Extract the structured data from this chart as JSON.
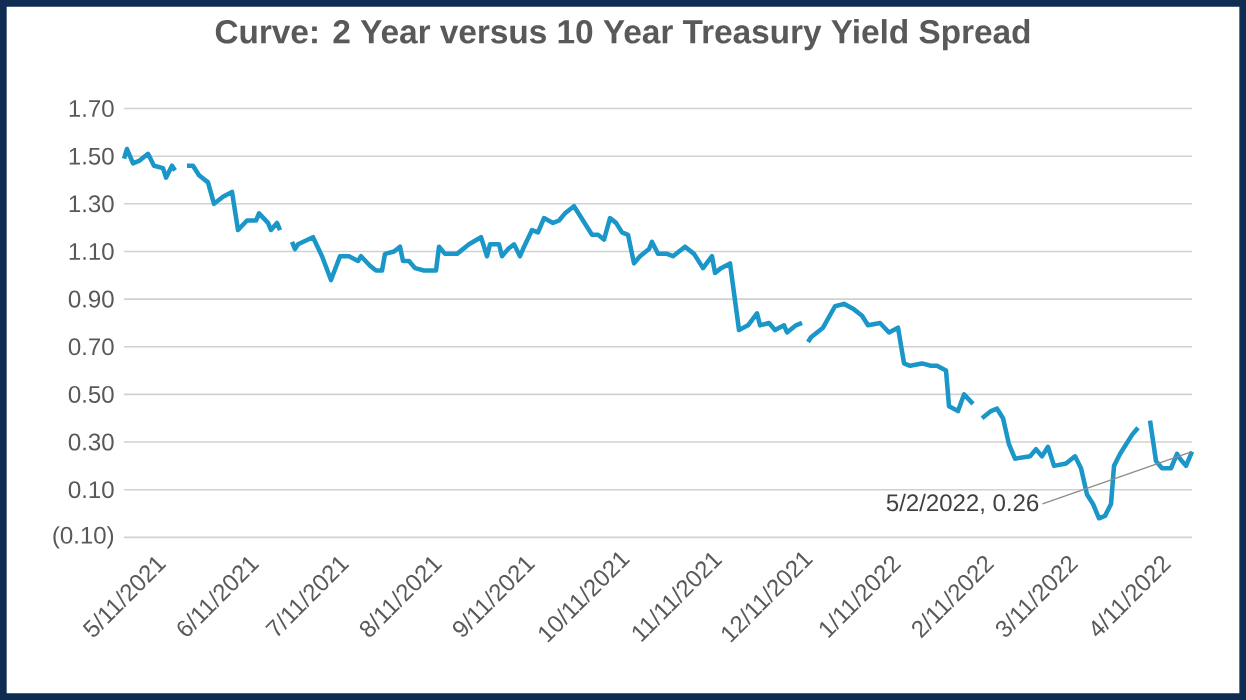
{
  "chart_data": {
    "type": "line",
    "title": "Curve: 2 Year versus 10 Year Treasury Yield Spread",
    "color": "#1a96c8",
    "marker": "none",
    "line_style": "solid",
    "grid": "y",
    "xlim": [
      "2021-05-11",
      "2022-05-02"
    ],
    "xticks": [
      {
        "value": "2021-05-11",
        "label": "5/11/2021"
      },
      {
        "value": "2021-06-11",
        "label": "6/11/2021"
      },
      {
        "value": "2021-07-11",
        "label": "7/11/2021"
      },
      {
        "value": "2021-08-11",
        "label": "8/11/2021"
      },
      {
        "value": "2021-09-11",
        "label": "9/11/2021"
      },
      {
        "value": "2021-10-11",
        "label": "10/11/2021"
      },
      {
        "value": "2021-11-11",
        "label": "11/11/2021"
      },
      {
        "value": "2021-12-11",
        "label": "12/11/2021"
      },
      {
        "value": "2022-01-11",
        "label": "1/11/2022"
      },
      {
        "value": "2022-02-11",
        "label": "2/11/2022"
      },
      {
        "value": "2022-03-11",
        "label": "3/11/2022"
      },
      {
        "value": "2022-04-11",
        "label": "4/11/2022"
      }
    ],
    "ylim": [
      -0.1,
      1.7
    ],
    "yticks": [
      {
        "value": -0.1,
        "label": "(0.10)"
      },
      {
        "value": 0.1,
        "label": "0.10"
      },
      {
        "value": 0.3,
        "label": "0.30"
      },
      {
        "value": 0.5,
        "label": "0.50"
      },
      {
        "value": 0.7,
        "label": "0.70"
      },
      {
        "value": 0.9,
        "label": "0.90"
      },
      {
        "value": 1.1,
        "label": "1.10"
      },
      {
        "value": 1.3,
        "label": "1.30"
      },
      {
        "value": 1.5,
        "label": "1.50"
      },
      {
        "value": 1.7,
        "label": "1.70"
      }
    ],
    "annotations": [
      {
        "text": "5/2/2022,  0.26",
        "x": "2022-05-02",
        "y": 0.26
      }
    ],
    "x": [
      "2021-05-11",
      "2021-05-12",
      "2021-05-14",
      "2021-05-16",
      "2021-05-19",
      "2021-05-21",
      "2021-05-24",
      "2021-05-25",
      "2021-05-27",
      "2021-05-28",
      "2021-05-31",
      "2021-06-01",
      "2021-06-03",
      "2021-06-05",
      "2021-06-08",
      "2021-06-10",
      "2021-06-13",
      "2021-06-16",
      "2021-06-18",
      "2021-06-21",
      "2021-06-24",
      "2021-06-25",
      "2021-06-28",
      "2021-06-29",
      "2021-07-01",
      "2021-07-02",
      "2021-07-04",
      "2021-07-06",
      "2021-07-07",
      "2021-07-08",
      "2021-07-13",
      "2021-07-16",
      "2021-07-19",
      "2021-07-22",
      "2021-07-25",
      "2021-07-28",
      "2021-07-29",
      "2021-08-01",
      "2021-08-03",
      "2021-08-05",
      "2021-08-06",
      "2021-08-09",
      "2021-08-11",
      "2021-08-12",
      "2021-08-14",
      "2021-08-16",
      "2021-08-19",
      "2021-08-21",
      "2021-08-23",
      "2021-08-24",
      "2021-08-26",
      "2021-08-30",
      "2021-09-01",
      "2021-09-03",
      "2021-09-07",
      "2021-09-09",
      "2021-09-10",
      "2021-09-13",
      "2021-09-14",
      "2021-09-16",
      "2021-09-18",
      "2021-09-20",
      "2021-09-21",
      "2021-09-24",
      "2021-09-26",
      "2021-09-28",
      "2021-10-01",
      "2021-10-03",
      "2021-10-05",
      "2021-10-08",
      "2021-10-10",
      "2021-10-14",
      "2021-10-16",
      "2021-10-18",
      "2021-10-20",
      "2021-10-22",
      "2021-10-24",
      "2021-10-26",
      "2021-10-28",
      "2021-10-30",
      "2021-11-02",
      "2021-11-03",
      "2021-11-05",
      "2021-11-08",
      "2021-11-10",
      "2021-11-14",
      "2021-11-17",
      "2021-11-20",
      "2021-11-23",
      "2021-11-24",
      "2021-11-26",
      "2021-11-29",
      "2021-12-02",
      "2021-12-05",
      "2021-12-08",
      "2021-12-09",
      "2021-12-12",
      "2021-12-14",
      "2021-12-17",
      "2021-12-18",
      "2021-12-21",
      "2021-12-23",
      "2021-12-24",
      "2021-12-25",
      "2021-12-26",
      "2021-12-28",
      "2021-12-30",
      "2022-01-03",
      "2022-01-06",
      "2022-01-09",
      "2022-01-12",
      "2022-01-14",
      "2022-01-18",
      "2022-01-21",
      "2022-01-24",
      "2022-01-26",
      "2022-01-28",
      "2022-02-01",
      "2022-02-04",
      "2022-02-06",
      "2022-02-09",
      "2022-02-10",
      "2022-02-13",
      "2022-02-15",
      "2022-02-18",
      "2022-02-20",
      "2022-02-21",
      "2022-02-24",
      "2022-02-26",
      "2022-02-28",
      "2022-03-02",
      "2022-03-04",
      "2022-03-09",
      "2022-03-11",
      "2022-03-13",
      "2022-03-15",
      "2022-03-17",
      "2022-03-21",
      "2022-03-24",
      "2022-03-26",
      "2022-03-28",
      "2022-03-30",
      "2022-04-01",
      "2022-04-03",
      "2022-04-05",
      "2022-04-06",
      "2022-04-08",
      "2022-04-12",
      "2022-04-14",
      "2022-04-16",
      "2022-04-18",
      "2022-04-20",
      "2022-04-22",
      "2022-04-25",
      "2022-04-27",
      "2022-04-28",
      "2022-04-30",
      "2022-05-02"
    ],
    "values": [
      1.49,
      1.53,
      1.47,
      1.48,
      1.51,
      1.46,
      1.45,
      1.41,
      1.46,
      1.44,
      null,
      1.46,
      1.46,
      1.42,
      1.39,
      1.3,
      1.33,
      1.35,
      1.19,
      1.23,
      1.23,
      1.26,
      1.22,
      1.19,
      1.22,
      1.19,
      null,
      1.14,
      1.11,
      1.13,
      1.16,
      1.08,
      0.98,
      1.08,
      1.08,
      1.06,
      1.08,
      1.04,
      1.02,
      1.02,
      1.09,
      1.1,
      1.12,
      1.06,
      1.06,
      1.03,
      1.02,
      1.02,
      1.02,
      1.12,
      1.09,
      1.09,
      1.11,
      1.13,
      1.16,
      1.08,
      1.13,
      1.13,
      1.08,
      1.11,
      1.13,
      1.08,
      1.11,
      1.19,
      1.18,
      1.24,
      1.22,
      1.23,
      1.26,
      1.29,
      1.25,
      1.17,
      1.17,
      1.15,
      1.24,
      1.22,
      1.18,
      1.17,
      1.05,
      1.08,
      1.11,
      1.14,
      1.09,
      1.09,
      1.08,
      1.12,
      1.09,
      1.03,
      1.08,
      1.01,
      1.03,
      1.05,
      0.77,
      0.79,
      0.84,
      0.79,
      0.8,
      0.77,
      0.79,
      0.76,
      0.79,
      0.8,
      null,
      0.72,
      0.74,
      0.76,
      0.78,
      0.87,
      0.88,
      0.86,
      0.83,
      0.79,
      0.8,
      0.76,
      0.78,
      0.63,
      0.62,
      0.63,
      0.62,
      0.62,
      0.6,
      0.45,
      0.43,
      0.5,
      0.46,
      null,
      0.4,
      0.43,
      0.44,
      0.4,
      0.29,
      0.23,
      0.24,
      0.27,
      0.24,
      0.28,
      0.2,
      0.21,
      0.24,
      0.19,
      0.08,
      0.04,
      -0.02,
      -0.01,
      0.04,
      0.2,
      0.25,
      0.33,
      0.36,
      null,
      0.39,
      0.22,
      0.19,
      0.19,
      0.25,
      0.23,
      0.2,
      0.26
    ]
  }
}
